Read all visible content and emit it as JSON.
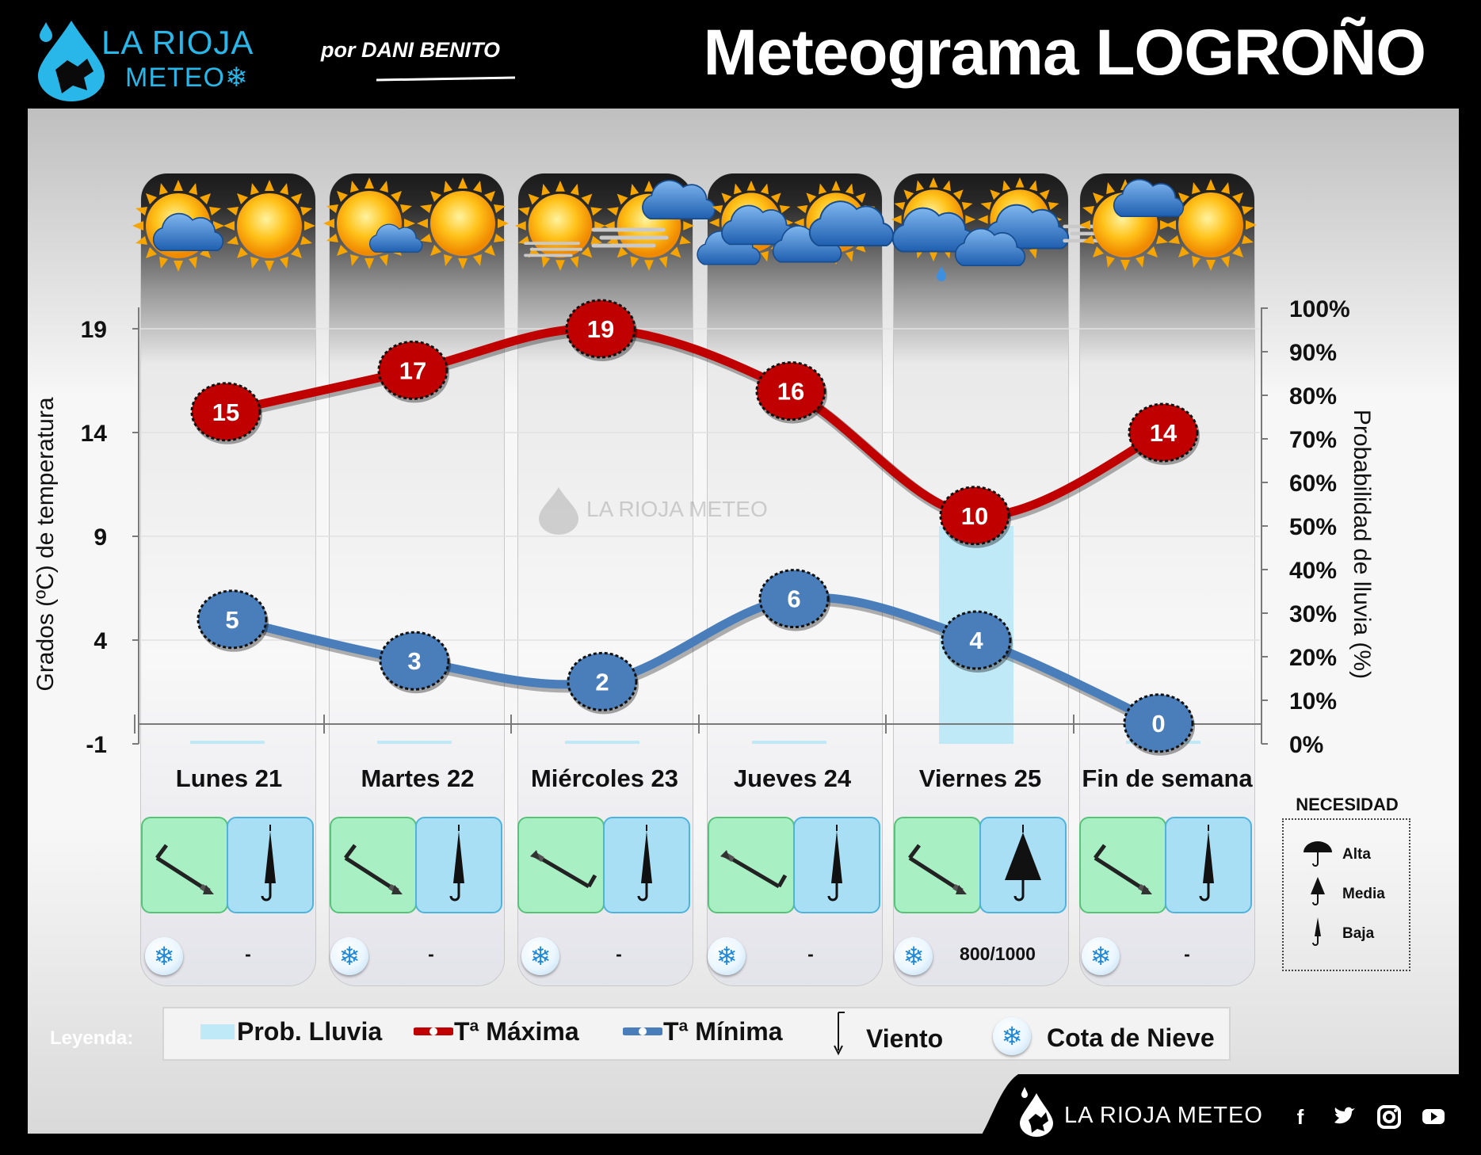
{
  "header": {
    "logo_line1": "LA RIOJA",
    "logo_line2": "METEO",
    "author": "por DANI BENITO",
    "title": "Meteograma LOGROÑO"
  },
  "watermark": "LA RIOJA METEO",
  "chart_data": {
    "type": "line",
    "categories": [
      "Lunes 21",
      "Martes 22",
      "Miércoles 23",
      "Jueves 24",
      "Viernes 25",
      "Fin de semana"
    ],
    "series": [
      {
        "name": "Tª Máxima",
        "values": [
          15,
          17,
          19,
          16,
          10,
          14
        ],
        "color": "#c00000"
      },
      {
        "name": "Tª Mínima",
        "values": [
          5,
          3,
          2,
          6,
          4,
          0
        ],
        "color": "#4a7ebb"
      },
      {
        "name": "Prob. Lluvia",
        "values": [
          0,
          0,
          0,
          0,
          50,
          0
        ],
        "unit": "%",
        "color": "#bfe9f7"
      }
    ],
    "y_left": {
      "label": "Grados (ºC) de temperatura",
      "ticks": [
        "19",
        "14",
        "9",
        "4",
        "-1"
      ],
      "range": [
        -1,
        20
      ]
    },
    "y_right": {
      "label": "Probabilidad de lluvia (%)",
      "ticks": [
        "100%",
        "90%",
        "80%",
        "70%",
        "60%",
        "50%",
        "40%",
        "30%",
        "20%",
        "10%",
        "0%"
      ],
      "range": [
        0,
        100
      ]
    },
    "grid": true
  },
  "days": [
    {
      "label": "Lunes 21",
      "weather": [
        "sun-cloud-icon",
        "sun-icon"
      ],
      "wind": "wind-nw-icon",
      "umbrella": "baja",
      "snow": "-"
    },
    {
      "label": "Martes 22",
      "weather": [
        "sun-small-cloud-icon",
        "sun-icon"
      ],
      "wind": "wind-nw-icon",
      "umbrella": "baja",
      "snow": "-"
    },
    {
      "label": "Miércoles 23",
      "weather": [
        "sun-fog-icon",
        "sun-cloud-wind-icon"
      ],
      "wind": "wind-se-icon",
      "umbrella": "baja",
      "snow": "-"
    },
    {
      "label": "Jueves 24",
      "weather": [
        "clouds-sun-icon",
        "clouds-sun-icon"
      ],
      "wind": "wind-se-icon",
      "umbrella": "baja",
      "snow": "-"
    },
    {
      "label": "Viernes 25",
      "weather": [
        "clouds-drizzle-icon",
        "clouds-wind-icon"
      ],
      "wind": "wind-nw-icon",
      "umbrella": "media",
      "snow": "800/1000"
    },
    {
      "label": "Fin de semana",
      "weather": [
        "sun-cloud-wind-icon",
        "sun-icon"
      ],
      "wind": "wind-nw-icon",
      "umbrella": "baja",
      "snow": "-"
    }
  ],
  "necesidad": {
    "title": "NECESIDAD",
    "levels": [
      "Alta",
      "Media",
      "Baja"
    ]
  },
  "legend": {
    "title": "Leyenda:",
    "items": [
      "Prob. Lluvia",
      "Tª Máxima",
      "Tª Mínima",
      "Viento",
      "Cota de Nieve"
    ]
  },
  "footer": {
    "brand": "LA RIOJA METEO",
    "social": [
      "facebook-icon",
      "twitter-icon",
      "instagram-icon",
      "youtube-icon"
    ]
  },
  "colors": {
    "max_line": "#c00000",
    "min_line": "#4a7ebb",
    "rain_bar": "#bfe9f7",
    "wind_tile": "#a8f0c4",
    "umbrella_tile": "#a9dff5",
    "logo_blue": "#29b6e8"
  }
}
